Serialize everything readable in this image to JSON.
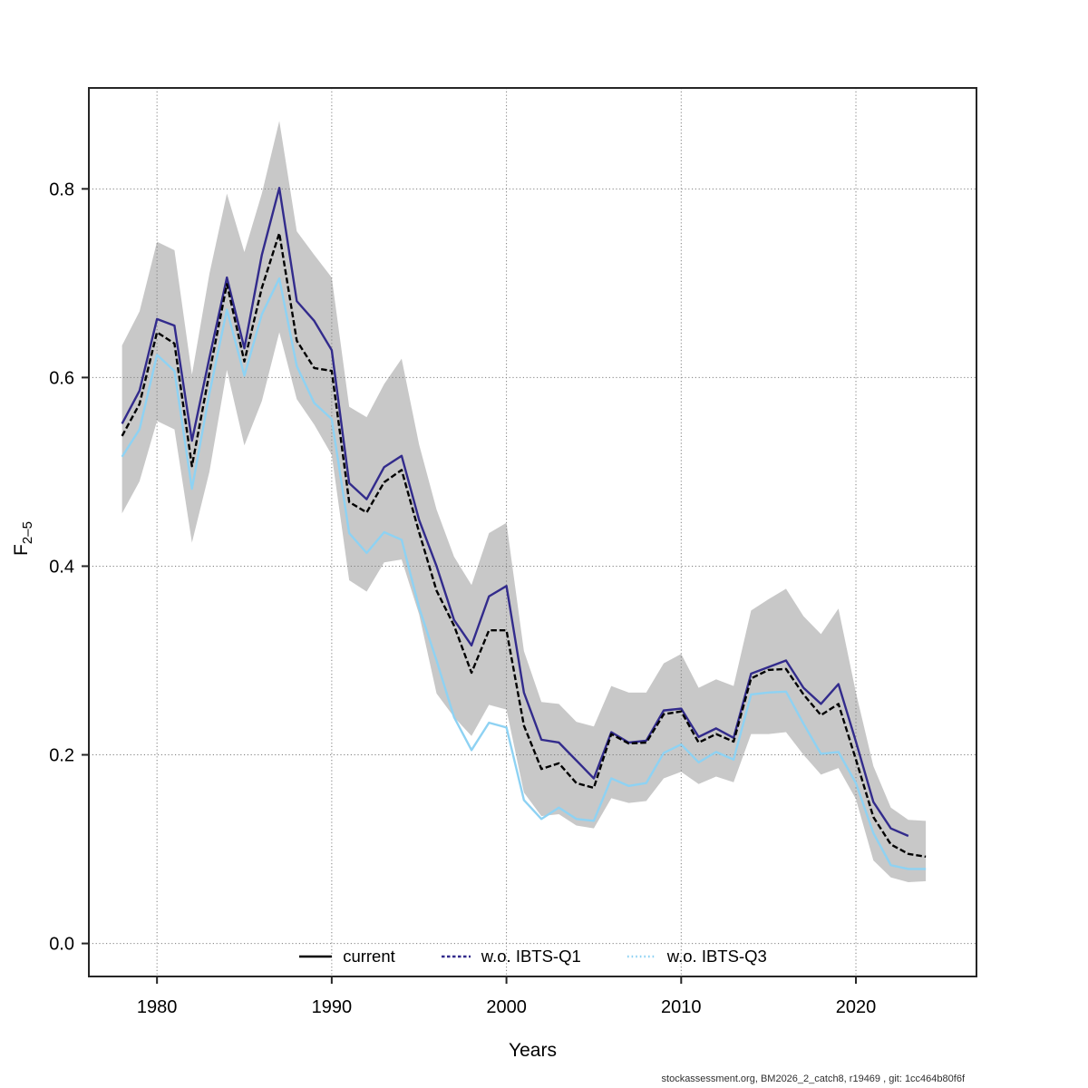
{
  "page": {
    "background": "#ffffff"
  },
  "footer": {
    "text": "stockassessment.org, BM2026_2_catch8, r19469 , git: 1cc464b80f6f"
  },
  "chart_data": {
    "type": "line",
    "title": "",
    "xlabel": "Years",
    "ylabel": {
      "main": "F",
      "sub": "2–5"
    },
    "x": [
      1978,
      1979,
      1980,
      1981,
      1982,
      1983,
      1984,
      1985,
      1986,
      1987,
      1988,
      1989,
      1990,
      1991,
      1992,
      1993,
      1994,
      1995,
      1996,
      1997,
      1998,
      1999,
      2000,
      2001,
      2002,
      2003,
      2004,
      2005,
      2006,
      2007,
      2008,
      2009,
      2010,
      2011,
      2012,
      2013,
      2014,
      2015,
      2016,
      2017,
      2018,
      2019,
      2020,
      2021,
      2022,
      2023,
      2024
    ],
    "series": [
      {
        "name": "current",
        "color": "#000000",
        "plot_style": "dashed",
        "legend_style": "solid",
        "values": [
          0.538,
          0.572,
          0.648,
          0.636,
          0.506,
          0.605,
          0.699,
          0.617,
          0.695,
          0.753,
          0.639,
          0.61,
          0.607,
          0.468,
          0.457,
          0.489,
          0.502,
          0.436,
          0.374,
          0.337,
          0.287,
          0.332,
          0.332,
          0.231,
          0.185,
          0.191,
          0.17,
          0.165,
          0.222,
          0.212,
          0.213,
          0.243,
          0.246,
          0.213,
          0.222,
          0.214,
          0.281,
          0.29,
          0.291,
          0.264,
          0.242,
          0.254,
          0.195,
          0.134,
          0.105,
          0.095,
          0.092
        ]
      },
      {
        "name": "w.o. IBTS-Q1",
        "color": "#322B8C",
        "plot_style": "solid",
        "legend_style": "dashed",
        "values": [
          0.551,
          0.586,
          0.662,
          0.655,
          0.533,
          0.621,
          0.706,
          0.631,
          0.73,
          0.801,
          0.681,
          0.66,
          0.629,
          0.488,
          0.471,
          0.505,
          0.517,
          0.449,
          0.4,
          0.343,
          0.316,
          0.368,
          0.379,
          0.266,
          0.216,
          0.213,
          0.194,
          0.175,
          0.224,
          0.213,
          0.215,
          0.247,
          0.249,
          0.219,
          0.228,
          0.218,
          0.286,
          0.293,
          0.3,
          0.271,
          0.254,
          0.275,
          0.214,
          0.15,
          0.122,
          0.114,
          null
        ]
      },
      {
        "name": "w.o. IBTS-Q3",
        "color": "#8ED2F3",
        "plot_style": "solid",
        "legend_style": "dotted",
        "values": [
          0.516,
          0.545,
          0.624,
          0.607,
          0.482,
          0.583,
          0.672,
          0.602,
          0.667,
          0.705,
          0.612,
          0.573,
          0.556,
          0.435,
          0.414,
          0.436,
          0.428,
          0.356,
          0.3,
          0.24,
          0.205,
          0.234,
          0.229,
          0.152,
          0.132,
          0.144,
          0.132,
          0.13,
          0.175,
          0.167,
          0.17,
          0.202,
          0.211,
          0.192,
          0.203,
          0.195,
          0.264,
          0.266,
          0.267,
          0.233,
          0.201,
          0.203,
          0.17,
          0.117,
          0.083,
          0.079,
          0.079
        ]
      }
    ],
    "band": {
      "for_series": "current",
      "color": "#C8C8C8",
      "hi": [
        0.634,
        0.67,
        0.744,
        0.735,
        0.603,
        0.71,
        0.795,
        0.733,
        0.795,
        0.872,
        0.755,
        0.73,
        0.706,
        0.569,
        0.558,
        0.593,
        0.62,
        0.529,
        0.46,
        0.41,
        0.38,
        0.435,
        0.446,
        0.31,
        0.256,
        0.254,
        0.235,
        0.23,
        0.273,
        0.266,
        0.266,
        0.297,
        0.307,
        0.271,
        0.28,
        0.273,
        0.353,
        0.365,
        0.376,
        0.347,
        0.328,
        0.355,
        0.266,
        0.188,
        0.144,
        0.131,
        0.13
      ],
      "lo": [
        0.456,
        0.49,
        0.554,
        0.545,
        0.425,
        0.5,
        0.608,
        0.528,
        0.575,
        0.648,
        0.577,
        0.55,
        0.518,
        0.385,
        0.373,
        0.404,
        0.407,
        0.349,
        0.265,
        0.24,
        0.22,
        0.253,
        0.248,
        0.16,
        0.135,
        0.137,
        0.125,
        0.122,
        0.154,
        0.149,
        0.151,
        0.175,
        0.182,
        0.169,
        0.177,
        0.171,
        0.222,
        0.222,
        0.224,
        0.2,
        0.179,
        0.186,
        0.153,
        0.088,
        0.07,
        0.065,
        0.066
      ]
    },
    "axes": {
      "xlim": [
        1976.1,
        2026.9
      ],
      "ylim": [
        -0.035,
        0.907
      ],
      "xticks": [
        {
          "v": 1980,
          "label": "1980"
        },
        {
          "v": 1990,
          "label": "1990"
        },
        {
          "v": 2000,
          "label": "2000"
        },
        {
          "v": 2010,
          "label": "2010"
        },
        {
          "v": 2020,
          "label": "2020"
        }
      ],
      "yticks": [
        {
          "v": 0.0,
          "label": "0.0"
        },
        {
          "v": 0.2,
          "label": "0.2"
        },
        {
          "v": 0.4,
          "label": "0.4"
        },
        {
          "v": 0.6,
          "label": "0.6"
        },
        {
          "v": 0.8,
          "label": "0.8"
        }
      ],
      "grid": "dotted",
      "grid_color": "#7F7F7F",
      "frame_color": "#262626"
    },
    "legend_position": "bottom-center-inside"
  }
}
